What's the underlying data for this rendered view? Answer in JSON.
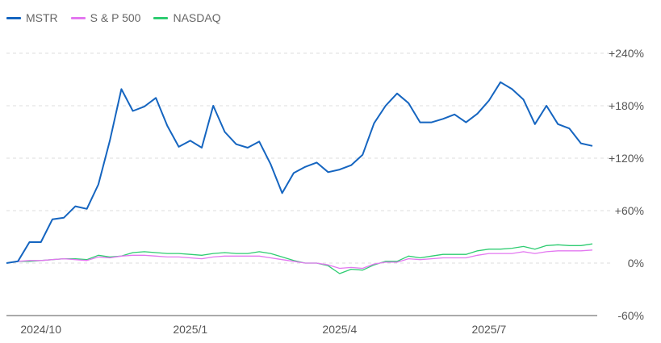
{
  "chart_data": {
    "type": "line",
    "legend_position": "top-left",
    "y_unit": "percent change",
    "ylim": [
      -60,
      240
    ],
    "y_ticks": [
      240,
      180,
      120,
      60,
      0,
      -60
    ],
    "y_tick_labels": [
      "+240%",
      "+180%",
      "+120%",
      "+60%",
      "0%",
      "-60%"
    ],
    "grid": "horizontal dashed",
    "x_tick_labels": [
      "2024/10",
      "2025/1",
      "2025/4",
      "2025/7"
    ],
    "x_tick_index": [
      3,
      16,
      29,
      42
    ],
    "series": [
      {
        "name": "MSTR",
        "color": "#1565c0",
        "values": [
          0,
          2,
          24,
          24,
          50,
          52,
          65,
          62,
          90,
          140,
          199,
          174,
          179,
          189,
          157,
          133,
          140,
          132,
          180,
          150,
          136,
          132,
          139,
          113,
          80,
          103,
          110,
          115,
          104,
          107,
          112,
          124,
          160,
          180,
          194,
          183,
          161,
          161,
          165,
          170,
          161,
          171,
          186,
          207,
          199,
          187,
          159,
          180,
          159,
          154,
          137,
          134
        ]
      },
      {
        "name": "S & P 500",
        "color": "#e377f0",
        "values": [
          0,
          2,
          3,
          3,
          4,
          5,
          4,
          3,
          7,
          6,
          8,
          9,
          9,
          8,
          7,
          7,
          6,
          5,
          7,
          8,
          8,
          8,
          8,
          6,
          4,
          2,
          0,
          0,
          -2,
          -6,
          -5,
          -6,
          -1,
          1,
          1,
          5,
          4,
          5,
          6,
          6,
          6,
          9,
          11,
          11,
          11,
          13,
          11,
          13,
          14,
          14,
          14,
          15
        ]
      },
      {
        "name": "NASDAQ",
        "color": "#2ecc71",
        "values": [
          0,
          2,
          2,
          3,
          4,
          5,
          5,
          4,
          9,
          7,
          8,
          12,
          13,
          12,
          11,
          11,
          10,
          9,
          11,
          12,
          11,
          11,
          13,
          11,
          7,
          3,
          0,
          0,
          -3,
          -12,
          -7,
          -8,
          -2,
          2,
          2,
          8,
          6,
          8,
          10,
          10,
          10,
          14,
          16,
          16,
          17,
          19,
          16,
          20,
          21,
          20,
          20,
          22
        ]
      }
    ]
  }
}
